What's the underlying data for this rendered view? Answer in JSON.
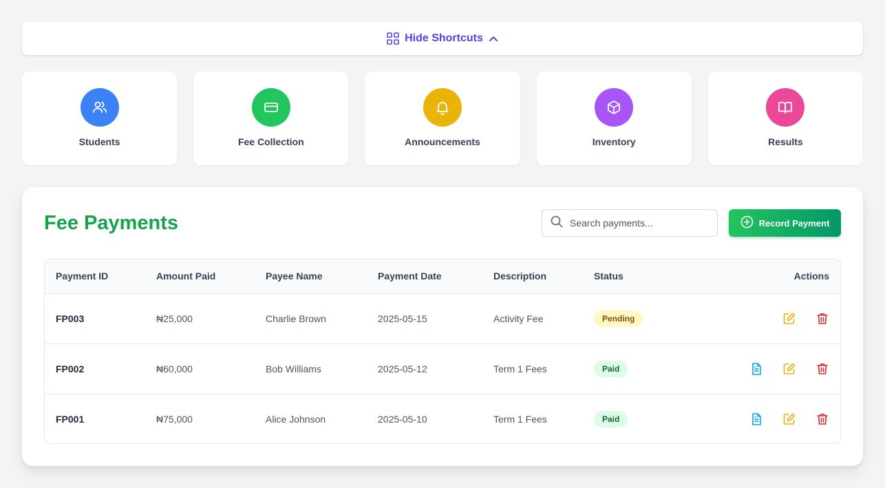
{
  "shortcuts_toggle": {
    "label": "Hide Shortcuts",
    "icon": "grid-icon",
    "chevron": "chevron-up-icon",
    "color": "#4f46e5"
  },
  "shortcuts": [
    {
      "label": "Students",
      "icon": "users-icon",
      "color": "#3b82f6"
    },
    {
      "label": "Fee Collection",
      "icon": "credit-card-icon",
      "color": "#22c55e"
    },
    {
      "label": "Announcements",
      "icon": "bell-icon",
      "color": "#eab308"
    },
    {
      "label": "Inventory",
      "icon": "box-icon",
      "color": "#a855f7"
    },
    {
      "label": "Results",
      "icon": "book-icon",
      "color": "#ec4899"
    }
  ],
  "panel": {
    "title": "Fee Payments",
    "search_placeholder": "Search payments...",
    "record_button": "Record Payment"
  },
  "table": {
    "headers": [
      "Payment ID",
      "Amount Paid",
      "Payee Name",
      "Payment Date",
      "Description",
      "Status",
      "Actions"
    ],
    "rows": [
      {
        "id": "FP003",
        "amount": "₦25,000",
        "payee": "Charlie Brown",
        "date": "2025-05-15",
        "description": "Activity Fee",
        "status": "Pending",
        "has_receipt": false
      },
      {
        "id": "FP002",
        "amount": "₦60,000",
        "payee": "Bob Williams",
        "date": "2025-05-12",
        "description": "Term 1 Fees",
        "status": "Paid",
        "has_receipt": true
      },
      {
        "id": "FP001",
        "amount": "₦75,000",
        "payee": "Alice Johnson",
        "date": "2025-05-10",
        "description": "Term 1 Fees",
        "status": "Paid",
        "has_receipt": true
      }
    ]
  }
}
